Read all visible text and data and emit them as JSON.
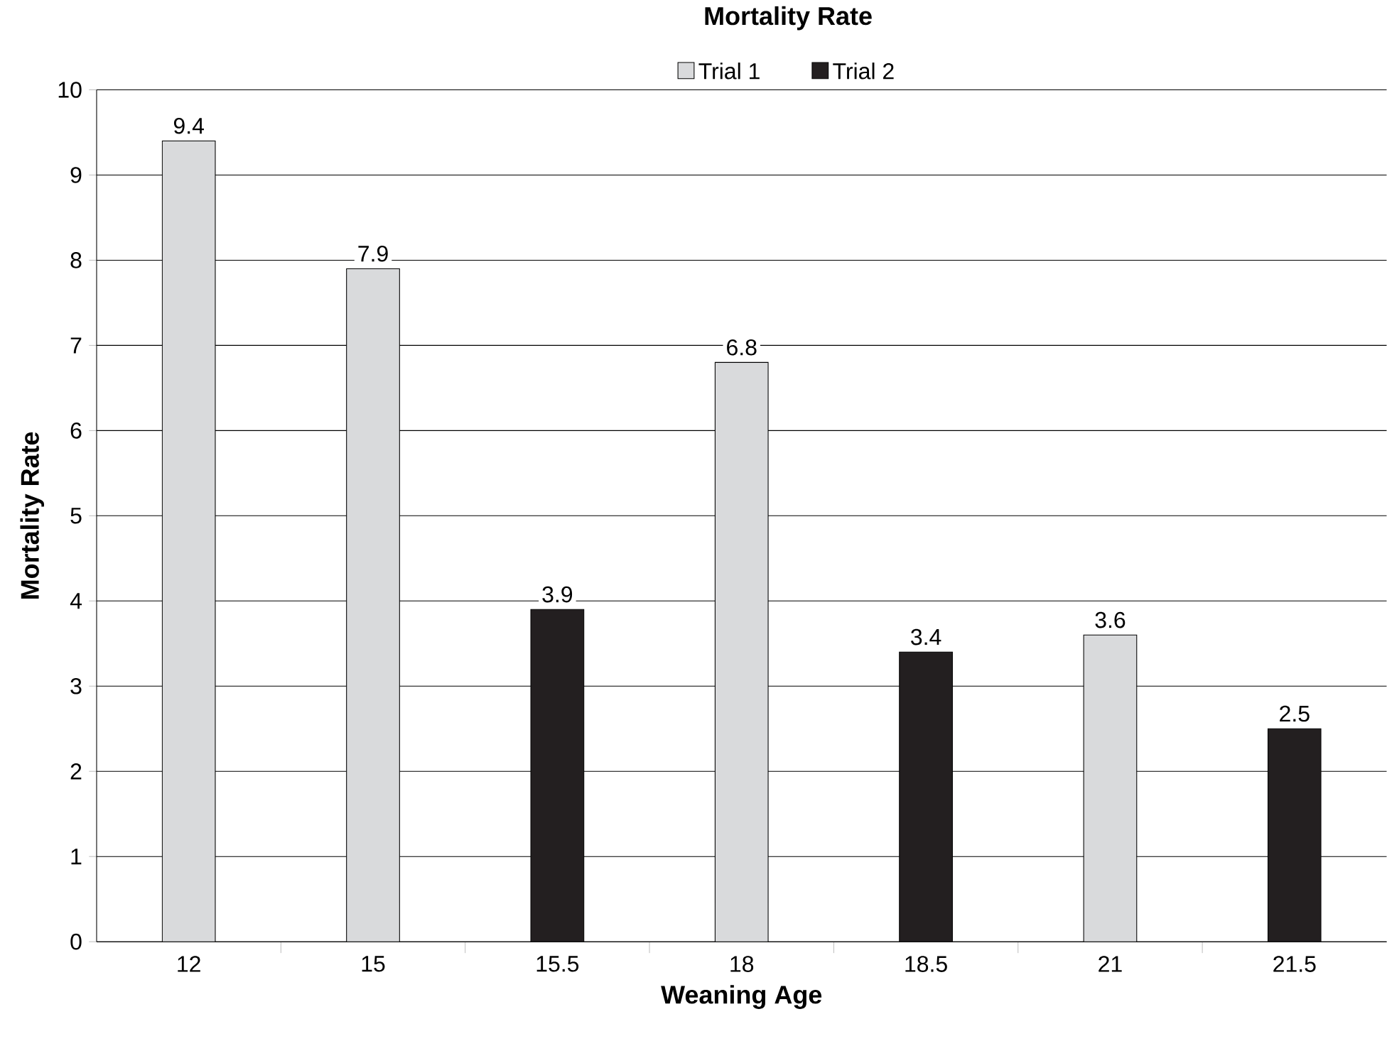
{
  "chart_data": {
    "type": "bar",
    "title": "Mortality Rate",
    "xlabel": "Weaning Age",
    "ylabel": "Mortality Rate",
    "categories": [
      "12",
      "15",
      "15.5",
      "18",
      "18.5",
      "21",
      "21.5"
    ],
    "series": [
      {
        "name": "Trial 1",
        "color": "#d9dadc",
        "values": [
          9.4,
          7.9,
          null,
          6.8,
          null,
          3.6,
          null
        ]
      },
      {
        "name": "Trial 2",
        "color": "#231f20",
        "values": [
          null,
          null,
          3.9,
          null,
          3.4,
          null,
          2.5
        ]
      }
    ],
    "ylim": [
      0,
      10
    ],
    "yticks": [
      0,
      1,
      2,
      3,
      4,
      5,
      6,
      7,
      8,
      9,
      10
    ],
    "grid": "y",
    "legend": "top",
    "data_labels": true
  }
}
